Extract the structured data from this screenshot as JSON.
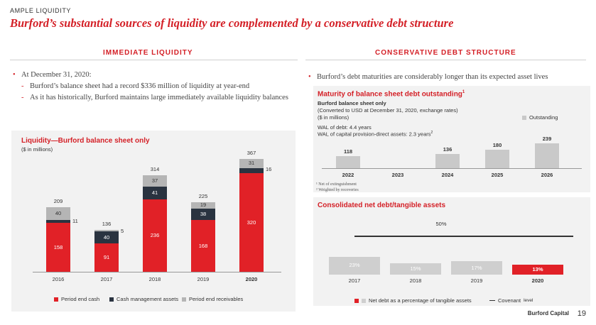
{
  "header": {
    "kicker": "AMPLE LIQUIDITY",
    "title": "Burford’s substantial sources of liquidity are complemented by a conservative debt structure"
  },
  "left": {
    "heading": "IMMEDIATE LIQUIDITY",
    "bullet": "At December 31, 2020:",
    "subs": [
      "Burford’s balance sheet had a record $336 million of liquidity at year-end",
      "As it has historically, Burford maintains large immediately available liquidity balances"
    ]
  },
  "right": {
    "heading": "CONSERVATIVE DEBT STRUCTURE",
    "bullet": "Burford’s debt maturities are considerably longer than its expected asset lives"
  },
  "liquidity_chart": {
    "title": "Liquidity—Burford balance sheet only",
    "subtitle": "($ in millions)",
    "legend": [
      "Period end cash",
      "Cash management assets",
      "Period end receivables"
    ]
  },
  "maturity_chart": {
    "title": "Maturity of balance sheet debt outstanding",
    "title_sup": "1",
    "sub1": "Burford balance sheet only",
    "sub2": "(Converted to USD at December 31, 2020, exchange rates)",
    "sub3": "($ in millions)",
    "wal1": "WAL of debt: 4.4 years",
    "wal2": "WAL of capital provision-direct assets: 2.3 years",
    "wal2_sup": "2",
    "legend": "Outstanding",
    "footnotes": [
      "¹ Net of extinguishment",
      "² Weighted by recoveries"
    ]
  },
  "netdebt_chart": {
    "title": "Consolidated net debt/tangible assets",
    "covenant_label": "50%",
    "legend_series": "Net debt as a percentage of tangible assets",
    "legend_covenant": "Covenant",
    "legend_covenant_suffix": "level"
  },
  "colors": {
    "red": "#e12127",
    "dark": "#2a3340",
    "gray": "#b5b5b5",
    "light_gray": "#cfcfcf",
    "accent": "#d42027"
  },
  "footer": {
    "brand": "Burford Capital",
    "page": "19"
  },
  "chart_data": [
    {
      "type": "bar",
      "stacked": true,
      "categories": [
        "2016",
        "2017",
        "2018",
        "2019",
        "2020"
      ],
      "series": [
        {
          "name": "Period end cash",
          "values": [
            158,
            91,
            236,
            168,
            320
          ]
        },
        {
          "name": "Cash management assets",
          "values": [
            11,
            40,
            41,
            38,
            16
          ]
        },
        {
          "name": "Period end receivables",
          "values": [
            40,
            5,
            37,
            19,
            31
          ]
        }
      ],
      "totals": [
        209,
        136,
        314,
        225,
        367
      ],
      "title": "Liquidity—Burford balance sheet only",
      "ylabel": "($ in millions)",
      "ylim": [
        0,
        380
      ],
      "legend": "bottom"
    },
    {
      "type": "bar",
      "categories": [
        "2022",
        "2023",
        "2024",
        "2025",
        "2026"
      ],
      "series": [
        {
          "name": "Outstanding",
          "values": [
            118,
            null,
            136,
            180,
            239
          ]
        }
      ],
      "title": "Maturity of balance sheet debt outstanding",
      "ylim": [
        0,
        260
      ],
      "legend": "top-right"
    },
    {
      "type": "bar",
      "categories": [
        "2017",
        "2018",
        "2019",
        "2020"
      ],
      "series": [
        {
          "name": "Net debt as a percentage of tangible assets",
          "values": [
            23,
            15,
            17,
            13
          ],
          "labels": [
            "23%",
            "15%",
            "17%",
            "13%"
          ]
        }
      ],
      "covenant": 50,
      "covenant_label": "50%",
      "title": "Consolidated net debt/tangible assets",
      "ylim": [
        0,
        55
      ],
      "legend": "bottom"
    }
  ]
}
